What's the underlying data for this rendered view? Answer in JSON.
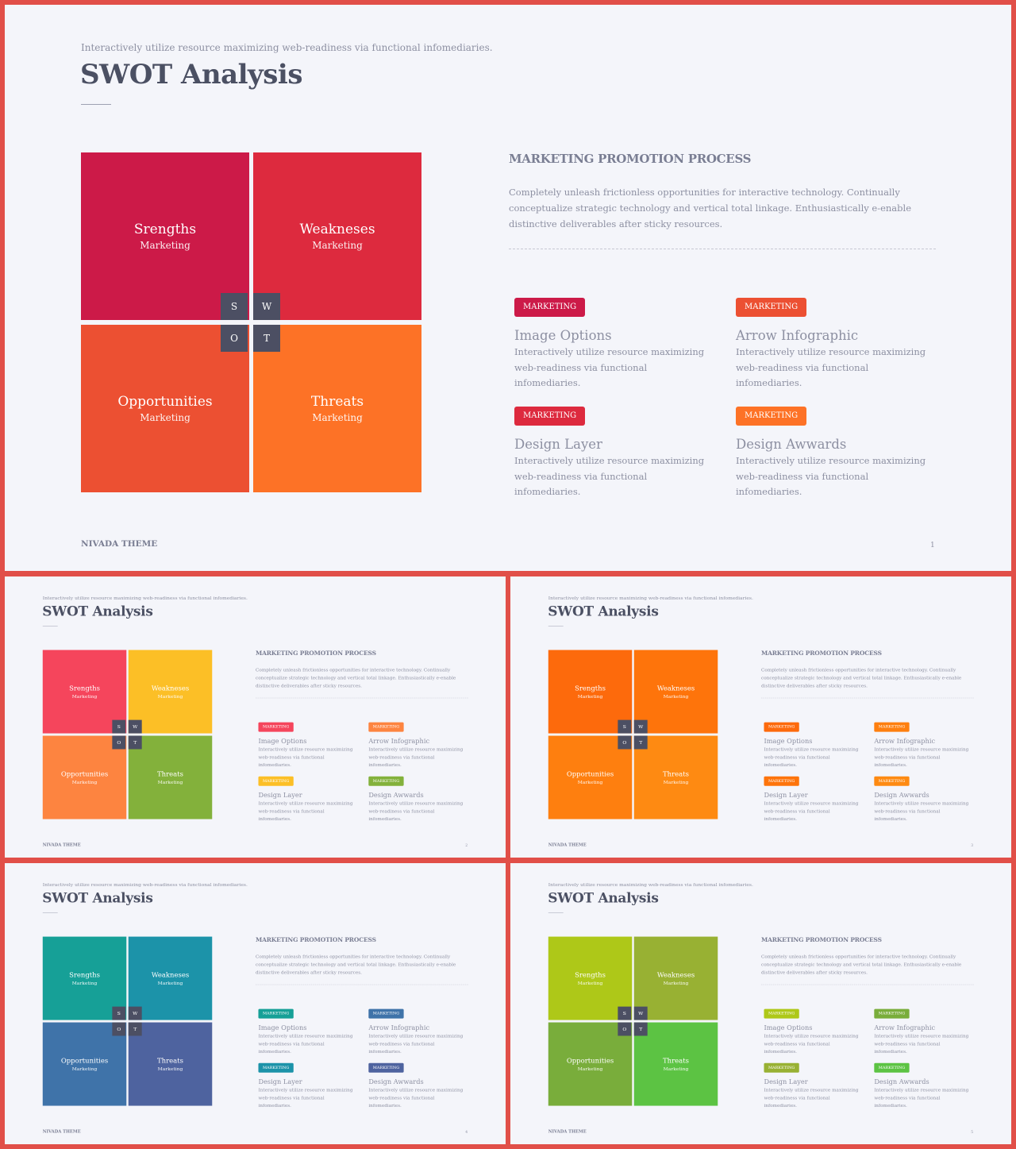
{
  "slides": [
    {
      "subtitle": "Interactively utilize resource maximizing web-readiness via functional infomediaries.",
      "title": "SWOT Analysis",
      "quadrants": [
        {
          "name": "Srengths",
          "sub": "Marketing",
          "color": "#cc1a48"
        },
        {
          "name": "Weakneses",
          "sub": "Marketing",
          "color": "#dd2a3e"
        },
        {
          "name": "Opportunities",
          "sub": "Marketing",
          "color": "#ec5032"
        },
        {
          "name": "Threats",
          "sub": "Marketing",
          "color": "#fd7226"
        }
      ],
      "letters": [
        "S",
        "W",
        "O",
        "T"
      ],
      "process_heading": "MARKETING PROMOTION PROCESS",
      "process_text": "Completely unleash frictionless opportunities for interactive technology. Continually conceptualize strategic technology and vertical total linkage. Enthusiastically e-enable distinctive deliverables after sticky resources.",
      "items": [
        {
          "badge": "MARKETING",
          "badge_color": "#cc1a48",
          "title": "Image Options",
          "desc": "Interactively utilize resource maximizing web-readiness via functional infomediaries."
        },
        {
          "badge": "MARKETING",
          "badge_color": "#ec5032",
          "title": "Arrow Infographic",
          "desc": "Interactively utilize resource maximizing web-readiness via functional infomediaries."
        },
        {
          "badge": "MARKETING",
          "badge_color": "#dd2a3e",
          "title": "Design Layer",
          "desc": "Interactively utilize resource maximizing web-readiness via functional infomediaries."
        },
        {
          "badge": "MARKETING",
          "badge_color": "#fd7226",
          "title": "Design Awwards",
          "desc": "Interactively utilize resource maximizing web-readiness via functional infomediaries."
        }
      ],
      "footer_brand": "NIVADA THEME",
      "page_number": "1"
    },
    {
      "subtitle": "Interactively utilize resource maximizing web-readiness via functional infomediaries.",
      "title": "SWOT Analysis",
      "quadrants": [
        {
          "name": "Srengths",
          "sub": "Marketing",
          "color": "#f5455c"
        },
        {
          "name": "Weakneses",
          "sub": "Marketing",
          "color": "#fcbf26"
        },
        {
          "name": "Opportunities",
          "sub": "Marketing",
          "color": "#fd8440"
        },
        {
          "name": "Threats",
          "sub": "Marketing",
          "color": "#83b13b"
        }
      ],
      "letters": [
        "S",
        "W",
        "O",
        "T"
      ],
      "process_heading": "MARKETING PROMOTION PROCESS",
      "process_text": "Completely unleash frictionless opportunities for interactive technology. Continually conceptualize strategic technology and vertical total linkage. Enthusiastically e-enable distinctive deliverables after sticky resources.",
      "items": [
        {
          "badge": "MARKETING",
          "badge_color": "#f5455c",
          "title": "Image Options",
          "desc": "Interactively utilize resource maximizing web-readiness via functional infomediaries."
        },
        {
          "badge": "MARKETING",
          "badge_color": "#fd8440",
          "title": "Arrow Infographic",
          "desc": "Interactively utilize resource maximizing web-readiness via functional infomediaries."
        },
        {
          "badge": "MARKETING",
          "badge_color": "#fcbf26",
          "title": "Design Layer",
          "desc": "Interactively utilize resource maximizing web-readiness via functional infomediaries."
        },
        {
          "badge": "MARKETING",
          "badge_color": "#83b13b",
          "title": "Design Awwards",
          "desc": "Interactively utilize resource maximizing web-readiness via functional infomediaries."
        }
      ],
      "footer_brand": "NIVADA THEME",
      "page_number": "2"
    },
    {
      "subtitle": "Interactively utilize resource maximizing web-readiness via functional infomediaries.",
      "title": "SWOT Analysis",
      "quadrants": [
        {
          "name": "Srengths",
          "sub": "Marketing",
          "color": "#fd6a0c"
        },
        {
          "name": "Weakneses",
          "sub": "Marketing",
          "color": "#fe740b"
        },
        {
          "name": "Opportunities",
          "sub": "Marketing",
          "color": "#fe7f0f"
        },
        {
          "name": "Threats",
          "sub": "Marketing",
          "color": "#fe8a12"
        }
      ],
      "letters": [
        "S",
        "W",
        "O",
        "T"
      ],
      "process_heading": "MARKETING PROMOTION PROCESS",
      "process_text": "Completely unleash frictionless opportunities for interactive technology. Continually conceptualize strategic technology and vertical total linkage. Enthusiastically e-enable distinctive deliverables after sticky resources.",
      "items": [
        {
          "badge": "MARKETING",
          "badge_color": "#fd6a0c",
          "title": "Image Options",
          "desc": "Interactively utilize resource maximizing web-readiness via functional infomediaries."
        },
        {
          "badge": "MARKETING",
          "badge_color": "#fe7f0f",
          "title": "Arrow Infographic",
          "desc": "Interactively utilize resource maximizing web-readiness via functional infomediaries."
        },
        {
          "badge": "MARKETING",
          "badge_color": "#fe740b",
          "title": "Design Layer",
          "desc": "Interactively utilize resource maximizing web-readiness via functional infomediaries."
        },
        {
          "badge": "MARKETING",
          "badge_color": "#fe8a12",
          "title": "Design Awwards",
          "desc": "Interactively utilize resource maximizing web-readiness via functional infomediaries."
        }
      ],
      "footer_brand": "NIVADA THEME",
      "page_number": "3"
    },
    {
      "subtitle": "Interactively utilize resource maximizing web-readiness via functional infomediaries.",
      "title": "SWOT Analysis",
      "quadrants": [
        {
          "name": "Srengths",
          "sub": "Marketing",
          "color": "#16a097"
        },
        {
          "name": "Weakneses",
          "sub": "Marketing",
          "color": "#1c93a9"
        },
        {
          "name": "Opportunities",
          "sub": "Marketing",
          "color": "#3f73a9"
        },
        {
          "name": "Threats",
          "sub": "Marketing",
          "color": "#4e639f"
        }
      ],
      "letters": [
        "S",
        "W",
        "O",
        "T"
      ],
      "process_heading": "MARKETING PROMOTION PROCESS",
      "process_text": "Completely unleash frictionless opportunities for interactive technology. Continually conceptualize strategic technology and vertical total linkage. Enthusiastically e-enable distinctive deliverables after sticky resources.",
      "items": [
        {
          "badge": "MARKETING",
          "badge_color": "#16a097",
          "title": "Image Options",
          "desc": "Interactively utilize resource maximizing web-readiness via functional infomediaries."
        },
        {
          "badge": "MARKETING",
          "badge_color": "#3f73a9",
          "title": "Arrow Infographic",
          "desc": "Interactively utilize resource maximizing web-readiness via functional infomediaries."
        },
        {
          "badge": "MARKETING",
          "badge_color": "#1c93a9",
          "title": "Design Layer",
          "desc": "Interactively utilize resource maximizing web-readiness via functional infomediaries."
        },
        {
          "badge": "MARKETING",
          "badge_color": "#4e639f",
          "title": "Design Awwards",
          "desc": "Interactively utilize resource maximizing web-readiness via functional infomediaries."
        }
      ],
      "footer_brand": "NIVADA THEME",
      "page_number": "4"
    },
    {
      "subtitle": "Interactively utilize resource maximizing web-readiness via functional infomediaries.",
      "title": "SWOT Analysis",
      "quadrants": [
        {
          "name": "Srengths",
          "sub": "Marketing",
          "color": "#aec818"
        },
        {
          "name": "Weakneses",
          "sub": "Marketing",
          "color": "#98b133"
        },
        {
          "name": "Opportunities",
          "sub": "Marketing",
          "color": "#79ad3b"
        },
        {
          "name": "Threats",
          "sub": "Marketing",
          "color": "#5cc343"
        }
      ],
      "letters": [
        "S",
        "W",
        "O",
        "T"
      ],
      "process_heading": "MARKETING PROMOTION PROCESS",
      "process_text": "Completely unleash frictionless opportunities for interactive technology. Continually conceptualize strategic technology and vertical total linkage. Enthusiastically e-enable distinctive deliverables after sticky resources.",
      "items": [
        {
          "badge": "MARKETING",
          "badge_color": "#aec818",
          "title": "Image Options",
          "desc": "Interactively utilize resource maximizing web-readiness via functional infomediaries."
        },
        {
          "badge": "MARKETING",
          "badge_color": "#79ad3b",
          "title": "Arrow Infographic",
          "desc": "Interactively utilize resource maximizing web-readiness via functional infomediaries."
        },
        {
          "badge": "MARKETING",
          "badge_color": "#98b133",
          "title": "Design Layer",
          "desc": "Interactively utilize resource maximizing web-readiness via functional infomediaries."
        },
        {
          "badge": "MARKETING",
          "badge_color": "#5cc343",
          "title": "Design Awwards",
          "desc": "Interactively utilize resource maximizing web-readiness via functional infomediaries."
        }
      ],
      "footer_brand": "NIVADA THEME",
      "page_number": "5"
    }
  ]
}
